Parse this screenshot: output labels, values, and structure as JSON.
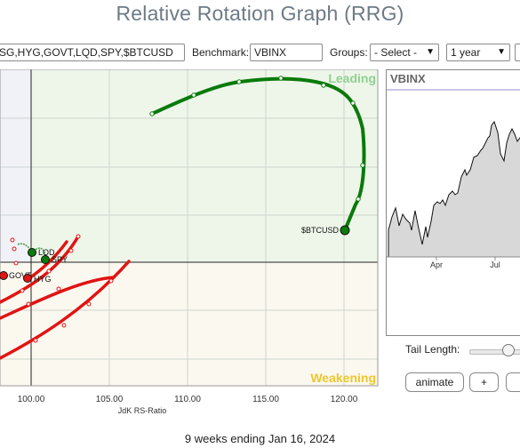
{
  "title": "Relative Rotation Graph (RRG)",
  "controls": {
    "symbols_value": "SG,HYG,GOVT,LQD,SPY,$BTCUSD",
    "benchmark_label": "Benchmark:",
    "benchmark_value": "VBINX",
    "groups_label": "Groups:",
    "groups_value": "- Select -",
    "period_value": "1 year"
  },
  "chart": {
    "quadrant_leading": "Leading",
    "quadrant_weakening": "Weakening",
    "x_label": "JdK RS-Ratio",
    "x_ticks": [
      "100.00",
      "105.00",
      "110.00",
      "115.00",
      "120.00"
    ],
    "labels": {
      "btc": "$BTCUSD",
      "lqd": "LQD",
      "spy": "SPY",
      "govt": "GOVT",
      "hyg": "HYG"
    },
    "colors": {
      "leading": "#eef6ea",
      "weakening": "#fbf8ef",
      "lagging": "#f1f1f8",
      "green_tail": "#0a7a0a",
      "red_tail": "#e01414"
    }
  },
  "price_chart": {
    "title": "VBINX",
    "x_ticks": [
      "Apr",
      "Jul"
    ]
  },
  "tail": {
    "label": "Tail Length:"
  },
  "buttons": {
    "animate": "animate",
    "plus": "+"
  },
  "footer": "9 weeks ending Jan 16, 2024"
}
